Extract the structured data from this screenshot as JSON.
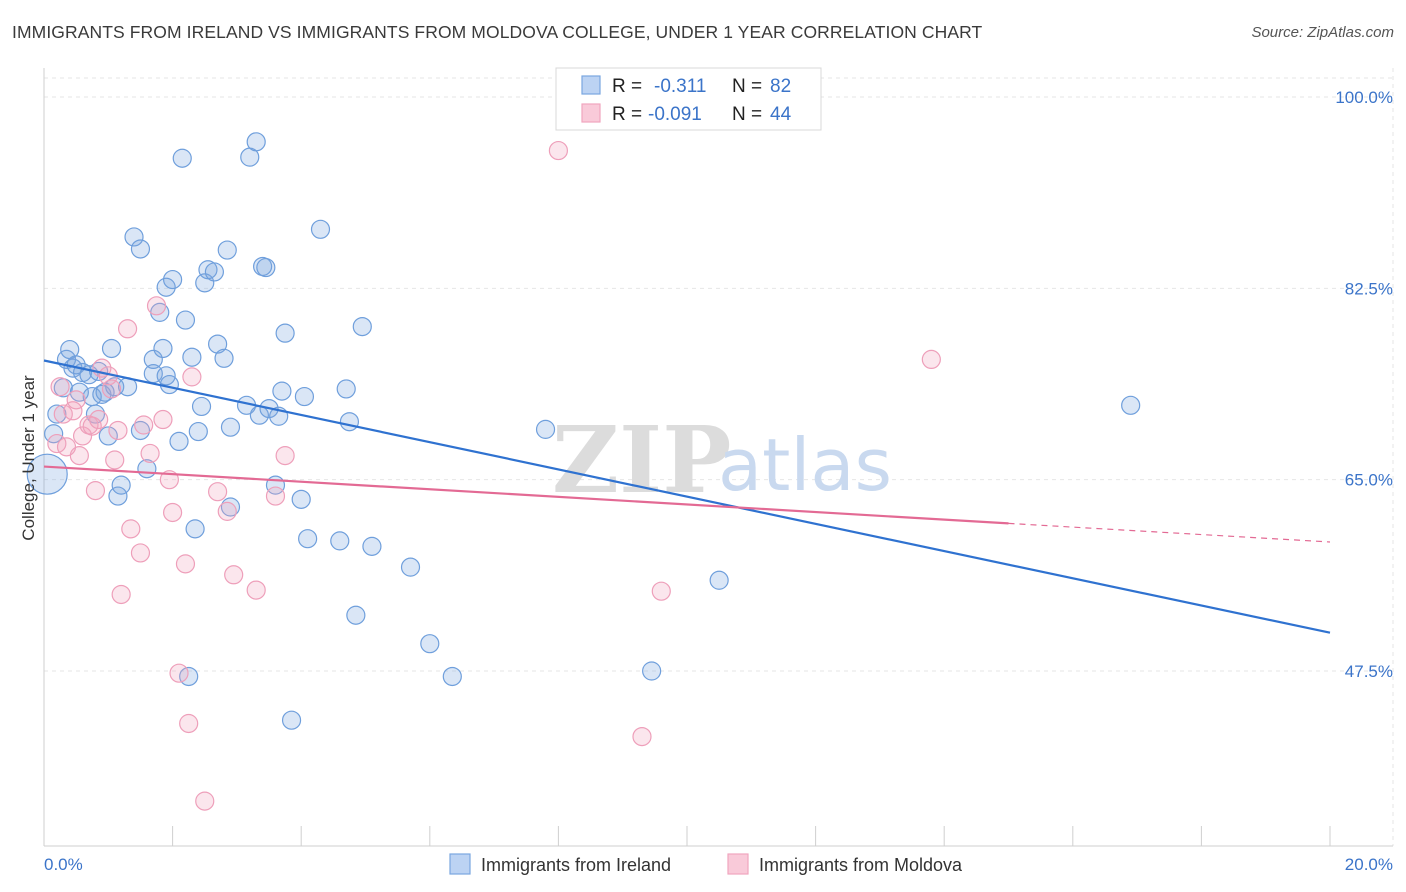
{
  "title": "IMMIGRANTS FROM IRELAND VS IMMIGRANTS FROM MOLDOVA COLLEGE, UNDER 1 YEAR CORRELATION CHART",
  "source": "Source: ZipAtlas.com",
  "watermark": {
    "zip": "ZIP",
    "atlas": "atlas"
  },
  "legend": {
    "ireland": {
      "r_label": "R =",
      "r_value": "-0.311",
      "n_label": "N =",
      "n_value": "82"
    },
    "moldova": {
      "r_label": "R =",
      "r_value": "-0.091",
      "n_label": "N =",
      "n_value": "44"
    }
  },
  "chart_data": {
    "type": "scatter",
    "ylabel": "College, Under 1 year",
    "xlim": [
      0,
      20
    ],
    "ylim": [
      32,
      103
    ],
    "x_tick_labels": [
      {
        "x": 0,
        "label": "0.0%"
      },
      {
        "x": 20,
        "label": "20.0%"
      }
    ],
    "y_tick_labels": [
      {
        "y": 100,
        "label": "100.0%"
      },
      {
        "y": 82.5,
        "label": "82.5%"
      },
      {
        "y": 65,
        "label": "65.0%"
      },
      {
        "y": 47.5,
        "label": "47.5%"
      }
    ],
    "grid": true,
    "legend_position": "top-center",
    "colors": {
      "ireland": "#7aa7e0",
      "ireland_line": "#2f72d0",
      "moldova": "#f1a5bf",
      "moldova_line": "#e36a94"
    },
    "series": [
      {
        "name": "Immigrants from Ireland",
        "points": [
          [
            0.05,
            65.5
          ],
          [
            0.15,
            69.2
          ],
          [
            0.2,
            71.0
          ],
          [
            0.3,
            73.4
          ],
          [
            0.35,
            76.0
          ],
          [
            0.4,
            76.9
          ],
          [
            0.45,
            75.2
          ],
          [
            0.5,
            75.5
          ],
          [
            0.55,
            73.0
          ],
          [
            0.6,
            74.8
          ],
          [
            0.7,
            74.6
          ],
          [
            0.75,
            72.6
          ],
          [
            0.8,
            71.0
          ],
          [
            0.85,
            74.9
          ],
          [
            0.9,
            72.8
          ],
          [
            0.95,
            73.0
          ],
          [
            1.0,
            69.0
          ],
          [
            1.05,
            77.0
          ],
          [
            1.1,
            73.5
          ],
          [
            1.15,
            63.5
          ],
          [
            1.2,
            64.5
          ],
          [
            1.3,
            73.5
          ],
          [
            1.4,
            87.2
          ],
          [
            1.5,
            86.1
          ],
          [
            1.5,
            69.5
          ],
          [
            1.6,
            66.0
          ],
          [
            1.7,
            74.7
          ],
          [
            1.7,
            76.0
          ],
          [
            1.8,
            80.3
          ],
          [
            1.85,
            77.0
          ],
          [
            1.9,
            82.6
          ],
          [
            1.9,
            74.5
          ],
          [
            1.95,
            73.7
          ],
          [
            2.0,
            83.3
          ],
          [
            2.1,
            68.5
          ],
          [
            2.15,
            94.4
          ],
          [
            2.2,
            79.6
          ],
          [
            2.25,
            47.0
          ],
          [
            2.3,
            76.2
          ],
          [
            2.35,
            60.5
          ],
          [
            2.4,
            69.4
          ],
          [
            2.45,
            71.7
          ],
          [
            2.5,
            83.0
          ],
          [
            2.55,
            84.2
          ],
          [
            2.65,
            84.0
          ],
          [
            2.7,
            77.4
          ],
          [
            2.8,
            76.1
          ],
          [
            2.85,
            86.0
          ],
          [
            2.9,
            62.5
          ],
          [
            2.9,
            69.8
          ],
          [
            3.15,
            71.8
          ],
          [
            3.2,
            94.5
          ],
          [
            3.3,
            95.9
          ],
          [
            3.35,
            70.9
          ],
          [
            3.4,
            84.5
          ],
          [
            3.45,
            84.4
          ],
          [
            3.5,
            71.5
          ],
          [
            3.6,
            64.5
          ],
          [
            3.65,
            70.8
          ],
          [
            3.7,
            73.1
          ],
          [
            3.75,
            78.4
          ],
          [
            3.85,
            43.0
          ],
          [
            4.0,
            63.2
          ],
          [
            4.05,
            72.6
          ],
          [
            4.1,
            59.6
          ],
          [
            4.3,
            87.9
          ],
          [
            4.6,
            59.4
          ],
          [
            4.7,
            73.3
          ],
          [
            4.75,
            70.3
          ],
          [
            4.85,
            52.6
          ],
          [
            4.95,
            79.0
          ],
          [
            5.1,
            58.9
          ],
          [
            5.7,
            57.0
          ],
          [
            6.0,
            50.0
          ],
          [
            6.35,
            47.0
          ],
          [
            7.8,
            69.6
          ],
          [
            9.45,
            47.5
          ],
          [
            10.5,
            55.8
          ],
          [
            16.9,
            71.8
          ]
        ],
        "trend": {
          "x": [
            0,
            20
          ],
          "y": [
            75.9,
            51.0
          ]
        }
      },
      {
        "name": "Immigrants from Moldova",
        "points": [
          [
            0.2,
            68.3
          ],
          [
            0.25,
            73.5
          ],
          [
            0.3,
            71.0
          ],
          [
            0.35,
            68.0
          ],
          [
            0.45,
            71.3
          ],
          [
            0.5,
            72.3
          ],
          [
            0.55,
            67.2
          ],
          [
            0.6,
            69.0
          ],
          [
            0.7,
            70.0
          ],
          [
            0.75,
            69.9
          ],
          [
            0.8,
            64.0
          ],
          [
            0.85,
            70.5
          ],
          [
            0.9,
            75.2
          ],
          [
            1.0,
            74.5
          ],
          [
            1.05,
            73.3
          ],
          [
            1.1,
            66.8
          ],
          [
            1.15,
            69.5
          ],
          [
            1.2,
            54.5
          ],
          [
            1.3,
            78.8
          ],
          [
            1.35,
            60.5
          ],
          [
            1.5,
            58.3
          ],
          [
            1.55,
            70.0
          ],
          [
            1.65,
            67.4
          ],
          [
            1.75,
            80.9
          ],
          [
            1.85,
            70.5
          ],
          [
            1.95,
            65.0
          ],
          [
            2.0,
            62.0
          ],
          [
            2.1,
            47.3
          ],
          [
            2.2,
            57.3
          ],
          [
            2.25,
            42.7
          ],
          [
            2.3,
            74.4
          ],
          [
            2.5,
            35.6
          ],
          [
            2.7,
            63.9
          ],
          [
            2.85,
            62.1
          ],
          [
            2.95,
            56.3
          ],
          [
            3.3,
            54.9
          ],
          [
            3.6,
            63.5
          ],
          [
            3.75,
            67.2
          ],
          [
            8.0,
            95.1
          ],
          [
            9.3,
            41.5
          ],
          [
            9.6,
            54.8
          ],
          [
            13.8,
            76.0
          ]
        ],
        "trend": {
          "x": [
            0,
            15
          ],
          "y": [
            66.2,
            61.0
          ]
        },
        "trend_dashed": {
          "x": [
            15,
            20
          ],
          "y": [
            61.0,
            59.3
          ]
        }
      }
    ]
  },
  "bottom_legend": {
    "ireland_label": "Immigrants from Ireland",
    "moldova_label": "Immigrants from Moldova"
  }
}
